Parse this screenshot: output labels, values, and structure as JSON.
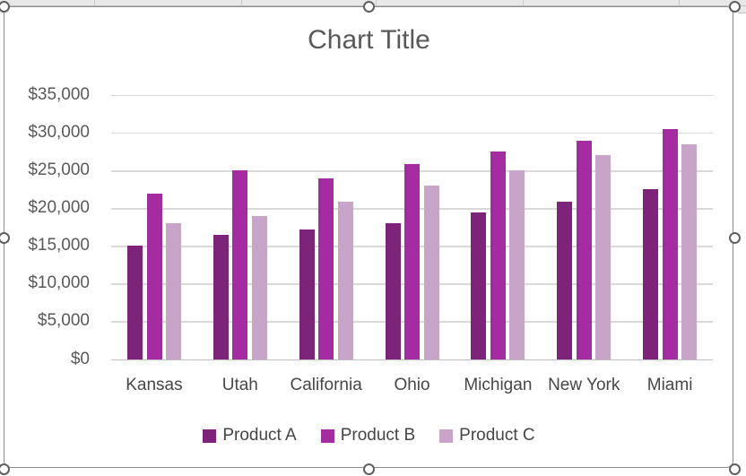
{
  "chart_data": {
    "type": "bar",
    "title": "Chart Title",
    "categories": [
      "Kansas",
      "Utah",
      "California",
      "Ohio",
      "Michigan",
      "New York",
      "Miami"
    ],
    "series": [
      {
        "name": "Product A",
        "color": "#7d2379",
        "values": [
          15000,
          16500,
          17200,
          18000,
          19400,
          20900,
          22500
        ]
      },
      {
        "name": "Product B",
        "color": "#a32da0",
        "values": [
          21900,
          25000,
          24000,
          25900,
          27500,
          28900,
          30500
        ]
      },
      {
        "name": "Product C",
        "color": "#c9a4ca",
        "values": [
          18000,
          18900,
          20900,
          23000,
          25000,
          27000,
          28500
        ]
      }
    ],
    "xlabel": "",
    "ylabel": "",
    "ylim": [
      0,
      35000
    ],
    "ytick_step": 5000,
    "ytick_labels": [
      "$0",
      "$5,000",
      "$10,000",
      "$15,000",
      "$20,000",
      "$25,000",
      "$30,000",
      "$35,000"
    ],
    "grid": true,
    "legend_position": "bottom"
  },
  "colors": {
    "gridline": "#d9d9d9",
    "axis_line": "#bfbfbf",
    "title_text": "#595959",
    "ytick_text": "#595959",
    "category_text": "#474747",
    "frame_border": "#8a8a8a",
    "handle_stroke": "#5f5f5f",
    "sheet_strip": "#e8e8e8",
    "sheet_line": "#c9c9c9"
  }
}
